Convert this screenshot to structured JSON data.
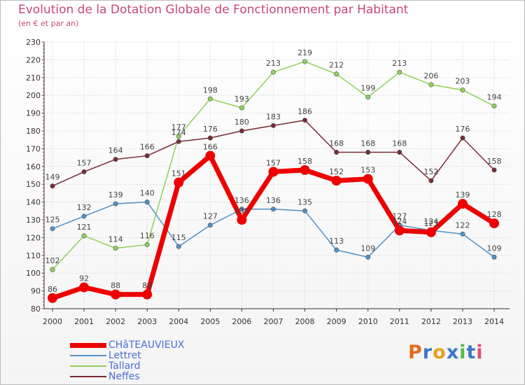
{
  "title": "Evolution de la Dotation Globale de Fonctionnement par Habitant",
  "subtitle": "(en € et par an)",
  "logo": {
    "text": "Proxiti",
    "colors": [
      "#e36b1a",
      "#3a78c9",
      "#e8a01c",
      "#3a78c9",
      "#58b947",
      "#3a78c9",
      "#e04f6f"
    ]
  },
  "chart_data": {
    "type": "line",
    "title": "Evolution de la Dotation Globale de Fonctionnement par Habitant",
    "ylabel": "(en € et par an)",
    "xlabel": "",
    "ylim": [
      80,
      230
    ],
    "yticks": [
      80,
      90,
      100,
      110,
      120,
      130,
      140,
      150,
      160,
      170,
      180,
      190,
      200,
      210,
      220,
      230
    ],
    "categories": [
      "2000",
      "2001",
      "2002",
      "2003",
      "2004",
      "2005",
      "2006",
      "2007",
      "2008",
      "2009",
      "2010",
      "2011",
      "2012",
      "2013",
      "2014"
    ],
    "grid": true,
    "legend": "bottom-left",
    "series": [
      {
        "name": "Lettret",
        "color": "#5090c8",
        "values": [
          125,
          132,
          139,
          140,
          115,
          127,
          136,
          136,
          135,
          113,
          109,
          127,
          124,
          122,
          109
        ],
        "labels": [
          "125",
          "132",
          "139",
          "140",
          "115",
          "127",
          "136",
          "136",
          "135",
          "113",
          "109",
          "127",
          "124",
          "122",
          "109"
        ]
      },
      {
        "name": "Tallard",
        "color": "#8fd05a",
        "values": [
          102,
          121,
          114,
          116,
          177,
          198,
          193,
          213,
          219,
          212,
          199,
          213,
          206,
          203,
          194
        ],
        "labels": [
          "102",
          "121",
          "114",
          "116",
          "177",
          "198",
          "193",
          "213",
          "219",
          "212",
          "199",
          "213",
          "206",
          "203",
          "194"
        ]
      },
      {
        "name": "Neffes",
        "color": "#7a2a35",
        "values": [
          149,
          157,
          164,
          166,
          174,
          176,
          180,
          183,
          186,
          168,
          168,
          168,
          152,
          176,
          158
        ],
        "labels": [
          "149",
          "157",
          "164",
          "166",
          "174",
          "176",
          "180",
          "183",
          "186",
          "168",
          "168",
          "168",
          "152",
          "176",
          "158"
        ]
      },
      {
        "name": "CHâTEAUVIEUX",
        "color": "#ee0000",
        "values": [
          86,
          92,
          88,
          88,
          151,
          166,
          130,
          157,
          158,
          152,
          153,
          124,
          123,
          139,
          128
        ],
        "labels": [
          "86",
          "92",
          "88",
          "88",
          "151",
          "166",
          "130",
          "157",
          "158",
          "152",
          "153",
          "124",
          "123",
          "139",
          "128"
        ]
      }
    ],
    "legend_entries": [
      "CHâTEAUVIEUX",
      "Lettret",
      "Tallard",
      "Neffes"
    ]
  }
}
